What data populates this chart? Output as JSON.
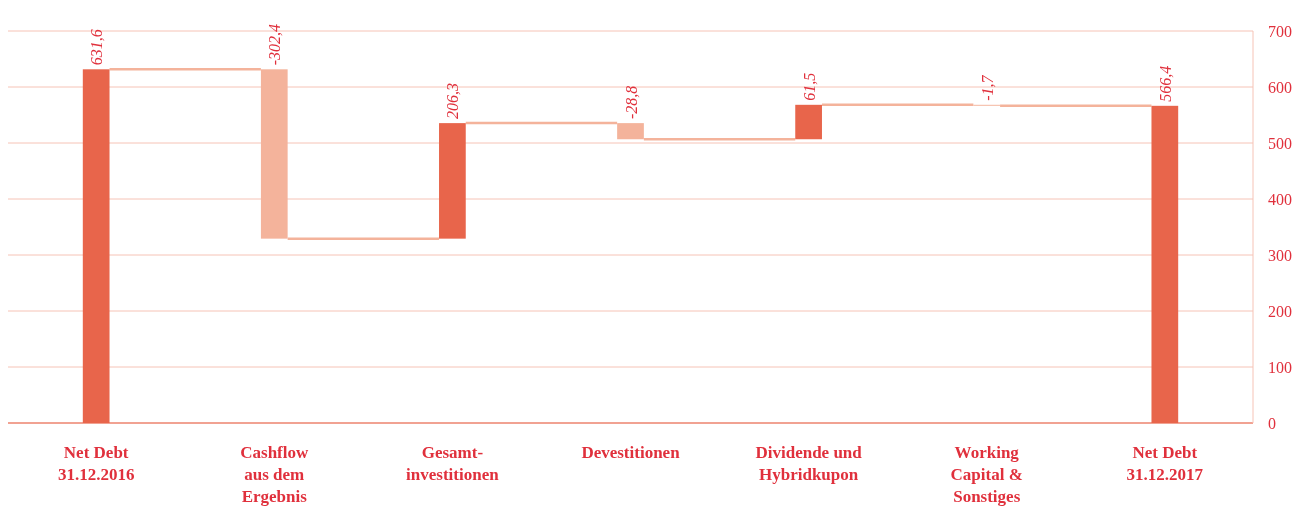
{
  "chart_data": {
    "type": "bar",
    "categories": [
      "Net Debt\n31.12.2016",
      "Cashflow\naus dem\nErgebnis",
      "Gesamt-\ninvestitionen",
      "Devestitionen",
      "Dividende und\nHybridkupon",
      "Working\nCapital &\nSonstiges",
      "Net Debt\n31.12.2017"
    ],
    "values": [
      631.6,
      -302.4,
      206.3,
      -28.8,
      61.5,
      -1.7,
      566.4
    ],
    "base": [
      0,
      631.6,
      329.2,
      535.5,
      506.7,
      568.2,
      0
    ],
    "colors": [
      "#e8654b",
      "#f4b39b",
      "#e8654b",
      "#f4b39b",
      "#e8654b",
      "#f4b39b",
      "#e8654b"
    ],
    "value_labels": [
      "631,6",
      "-302,4",
      "206,3",
      "-28,8",
      "61,5",
      "-1,7",
      "566,4"
    ],
    "ylim": [
      0,
      700
    ],
    "yticks": [
      0,
      100,
      200,
      300,
      400,
      500,
      600,
      700
    ],
    "grid": "y"
  }
}
